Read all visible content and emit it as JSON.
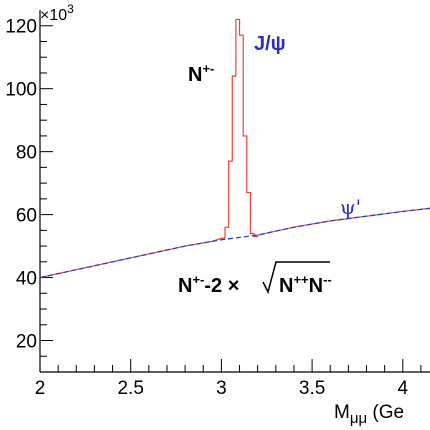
{
  "chart_data": {
    "type": "line",
    "xlabel": "M",
    "xlabel_sub": "μμ",
    "xlabel_tail": " (Ge",
    "y_exponent": "×10",
    "y_exponent_power": "3",
    "xlim": [
      2.0,
      4.15
    ],
    "ylim": [
      10,
      125
    ],
    "x_ticks": [
      "2",
      "2.5",
      "3",
      "3.5",
      "4"
    ],
    "y_ticks": [
      "20",
      "40",
      "60",
      "80",
      "100",
      "120"
    ],
    "annotations": {
      "jpsi": "J/ψ",
      "psiprime": "ψ'",
      "npm_main": "N",
      "npm_sup": "+-",
      "sub_prefix_main": "N",
      "sub_prefix_sup": "+-",
      "sub_factor": "-2 ×",
      "sqrt_a_main": "N",
      "sqrt_a_sup": "++",
      "sqrt_b_main": "N",
      "sqrt_b_sup": "--"
    },
    "series": [
      {
        "name": "N+-",
        "color": "#e8433a",
        "style": "histogram",
        "x": [
          2.0,
          2.2,
          2.4,
          2.6,
          2.8,
          2.95,
          3.0,
          3.02,
          3.04,
          3.06,
          3.08,
          3.1,
          3.12,
          3.14,
          3.16,
          3.18,
          3.2,
          3.4,
          3.6,
          3.8,
          4.0,
          4.15
        ],
        "y": [
          40,
          42.5,
          45,
          47.5,
          50,
          51.5,
          52.5,
          56,
          77,
          104,
          122,
          117,
          85,
          67,
          54,
          53,
          53.5,
          56,
          58,
          59.5,
          61,
          62
        ]
      },
      {
        "name": "N+- - 2×sqrt(N++ N--)",
        "color": "#2e3cc8",
        "style": "dashed",
        "x": [
          2.0,
          2.2,
          2.4,
          2.6,
          2.8,
          3.0,
          3.2,
          3.4,
          3.6,
          3.8,
          4.0,
          4.15
        ],
        "y": [
          40,
          42.5,
          45,
          47.5,
          50,
          52,
          53.5,
          56,
          58,
          59.5,
          61,
          62
        ]
      }
    ]
  },
  "colors": {
    "axis": "#000000",
    "signal": "#e8433a",
    "background": "#2e3cc8",
    "label_blue": "#2e2ec8"
  }
}
